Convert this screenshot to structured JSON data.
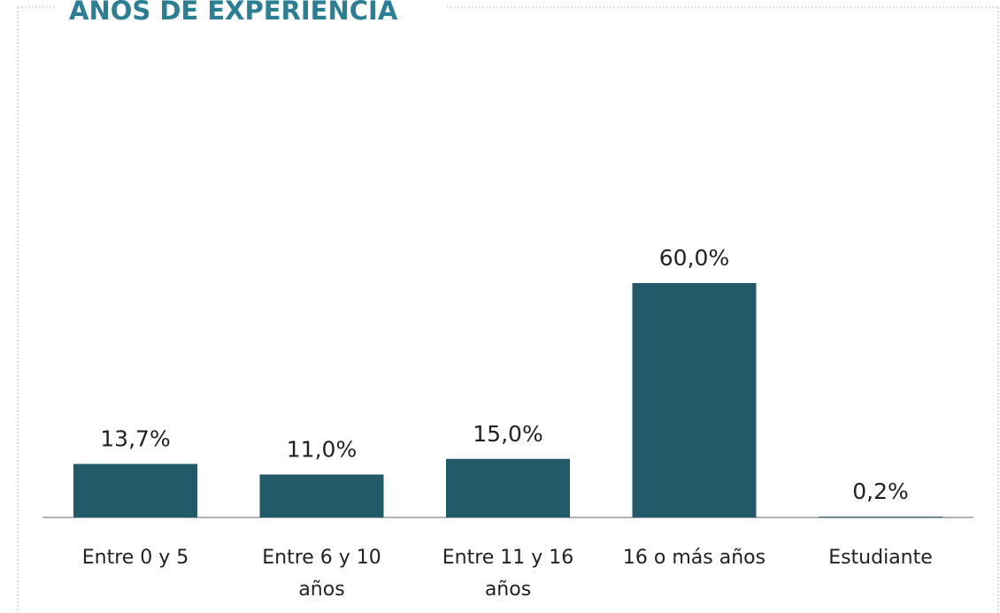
{
  "chart_data": {
    "type": "bar",
    "title": "AÑOS DE EXPERIENCIA",
    "categories": [
      "Entre 0 y 5",
      "Entre 6 y 10 años",
      "Entre 11 y 16 años",
      "16 o más años",
      "Estudiante"
    ],
    "values": [
      13.7,
      11.0,
      15.0,
      60.0,
      0.2
    ],
    "value_labels": [
      "13,7%",
      "11,0%",
      "15,0%",
      "60,0%",
      "0,2%"
    ],
    "color": "#235a69"
  }
}
